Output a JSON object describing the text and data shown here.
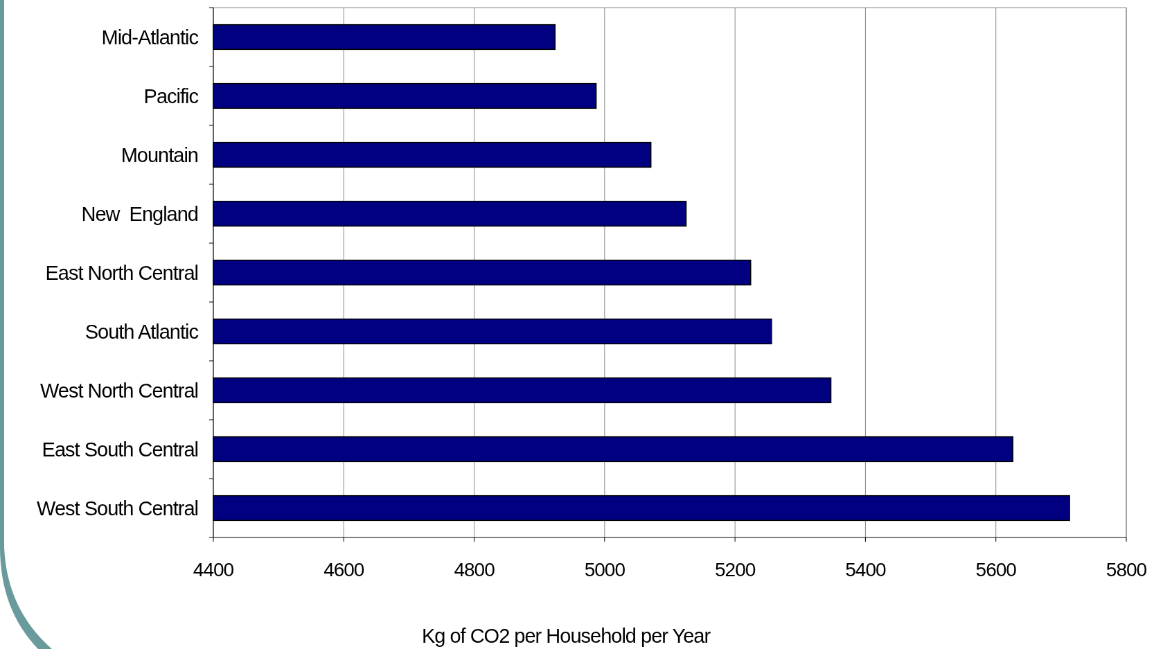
{
  "chart_data": {
    "type": "bar",
    "orientation": "horizontal",
    "xlabel": "Kg of CO2 per Household per Year",
    "categories": [
      "Mid-Atlantic",
      "Pacific",
      "Mountain",
      "New  England",
      "East North Central",
      "South Atlantic",
      "West North Central",
      "East South Central",
      "West South Central"
    ],
    "values": [
      4924,
      4987,
      5071,
      5125,
      5224,
      5256,
      5347,
      5626,
      5713
    ],
    "color": "#000080",
    "xlim": [
      4400,
      5800
    ],
    "xticks": [
      4400,
      4600,
      4800,
      5000,
      5200,
      5400,
      5600,
      5800
    ],
    "grid": "x"
  }
}
